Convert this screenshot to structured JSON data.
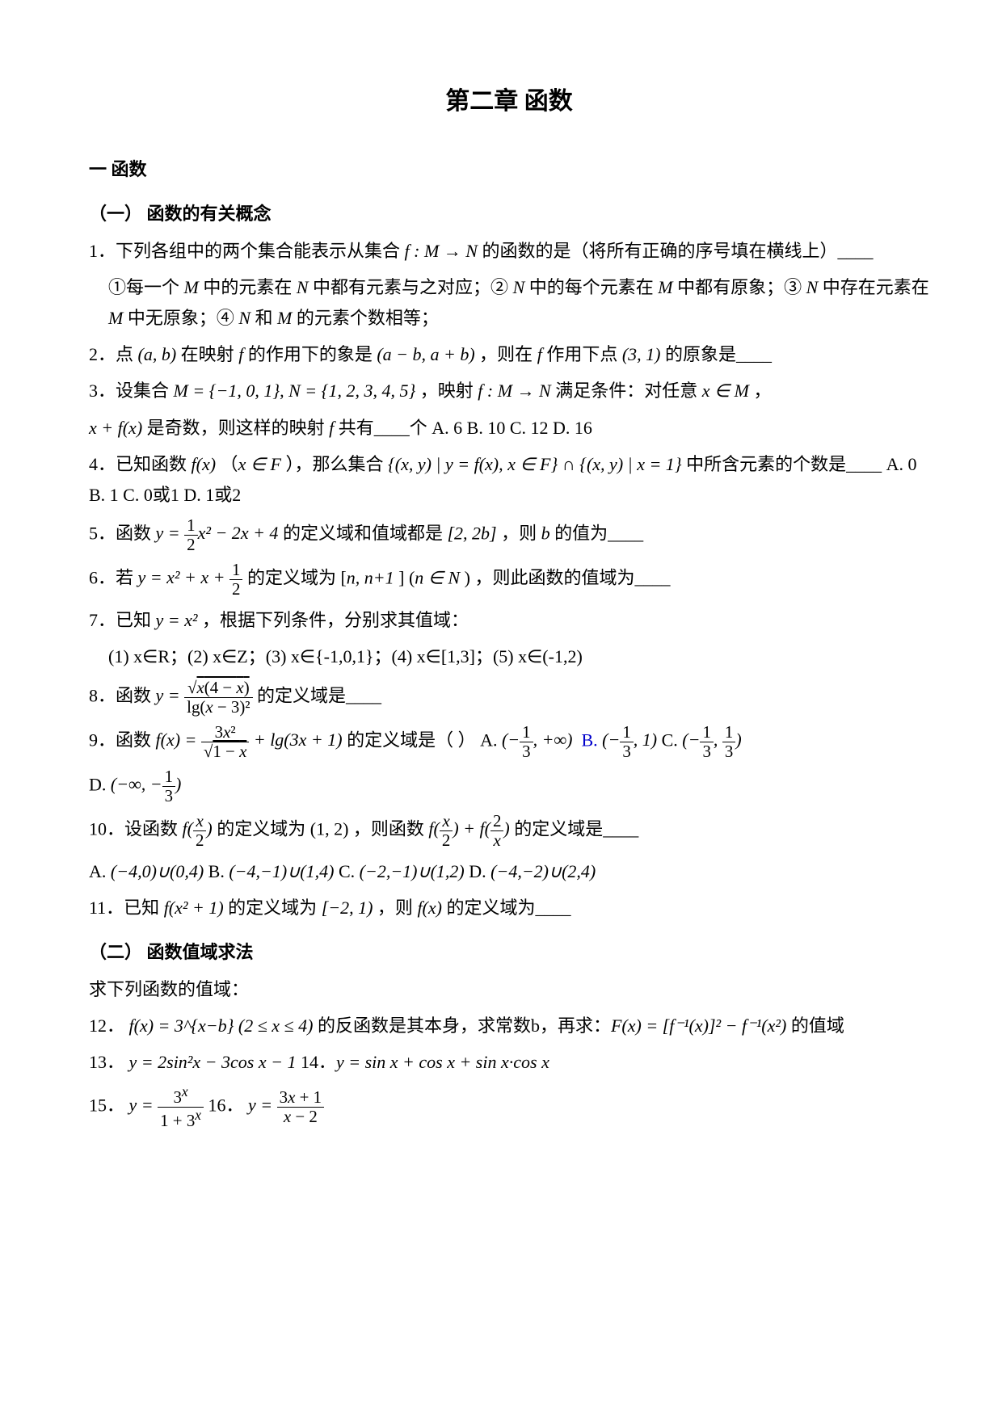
{
  "title": "第二章  函数",
  "s1": {
    "head": "一  函数",
    "sub1": "（一） 函数的有关概念",
    "q1_lead": "1．下列各组中的两个集合能表示从集合 ",
    "q1_mid": " 的函数的是（将所有正确的序号填在横线上）____",
    "q1_a": "①每一个 ",
    "q1_a2": " 中的元素在 ",
    "q1_a3": " 中都有元素与之对应；② ",
    "q1_a4": " 中的每个元素在 ",
    "q1_a5": " 中都有原象；③ ",
    "q1_a6": " 中存在元素在 ",
    "q1_a7": " 中无原象；④ ",
    "q1_a8": " 和 ",
    "q1_a9": " 的元素个数相等；",
    "q2a": "2．点 ",
    "q2b": " 在映射 ",
    "q2c": " 的作用下的象是 ",
    "q2d": " ，则在 ",
    "q2e": " 作用下点 ",
    "q2f": " 的原象是____",
    "q3a": "3．设集合 ",
    "q3b": " ，映射 ",
    "q3c": " 满足条件：对任意 ",
    "q3d": " ，",
    "q3e": " 是奇数，则这样的映射 ",
    "q3f": " 共有____个  A. 6   B. 10   C. 12   D. 16",
    "q4a": "4．已知函数 ",
    "q4b": " （",
    "q4c": " ），那么集合 ",
    "q4d": " 中所含元素的个数是____   A. 0   B. 1   C. 0或1   D. 1或2",
    "q5a": "5．函数 ",
    "q5b": " 的定义域和值域都是 ",
    "q5c": " ，则 ",
    "q5d": " 的值为____",
    "q6a": "6．若 ",
    "q6b": " 的定义域为 [",
    "q6c": "] (",
    "q6d": ") ，则此函数的值域为____",
    "q7a": "7．已知 ",
    "q7b": " ，根据下列条件，分别求其值域：",
    "q7c": "(1) x∈R；(2) x∈Z；(3) x∈{-1,0,1}；(4) x∈[1,3]；(5) x∈(-1,2)",
    "q8a": "8．函数 ",
    "q8b": " 的定义域是____",
    "q9a": "9．函数 ",
    "q9b": " 的定义域是（   ）   A. ",
    "q9c": "   C. ",
    "q9d": "   D. ",
    "q10a": "10．设函数 ",
    "q10b": " 的定义域为 (1, 2) ，则函数 ",
    "q10c": " 的定义域是____",
    "q10d": "  A. ",
    "q10e": "   B. ",
    "q10f": "   C. ",
    "q10g": "   D. ",
    "q11a": "11．已知 ",
    "q11b": " 的定义域为 ",
    "q11c": " ，则 ",
    "q11d": " 的定义域为____",
    "sub2": "（二） 函数值域求法",
    "info": "求下列函数的值域：",
    "q12a": "12． ",
    "q12b": " 的反函数是其本身，求常数b，再求：",
    "q12c": " 的值域",
    "q13a": "13． ",
    "q13b": "              14．",
    "q15a": "15． ",
    "q15b": "              16．"
  },
  "formulas": {
    "fMN": "f : M → N",
    "M": "M",
    "N": "N",
    "ab": "(a, b)",
    "f": "f",
    "abmap": "(a − b, a + b)",
    "p31": "(3, 1)",
    "set_MN": "M = {−1, 0, 1},  N = {1, 2, 3, 4, 5}",
    "xinM": "x ∈ M",
    "xpfx": "x + f(x)",
    "fx": "f(x)",
    "xinF": "x ∈ F",
    "setinter": "{(x, y) | y = f(x), x ∈ F} ∩ {(x, y) | x = 1}",
    "interval2b": "[2, 2b]",
    "b": "b",
    "nn1": "n, n+1",
    "ninN": "n ∈ N",
    "yx2": "y = x²",
    "domA": "(-\\frac{1}{3}, +∞)",
    "domBl": "B.",
    "domB": "(-\\frac{1}{3}, 1)",
    "domC": "(-\\frac{1}{3}, \\frac{1}{3})",
    "domD": "(-∞, -\\frac{1}{3})",
    "ff": "f(x/2)+f(2/x)",
    "optA": "(−4,0)∪(0,4)",
    "optB": "(−4,−1)∪(1,4)",
    "optC": "(−2,−1)∪(1,2)",
    "optD": "(−4,−2)∪(2,4)",
    "fx2p1": "f(x² + 1)",
    "m21": "[−2, 1)",
    "f12": "f(x) = 3^{x−b} (2 ≤ x ≤ 4)",
    "F12": "F(x) = [f⁻¹(x)]² − f⁻¹(x²)",
    "y13": "y = 2sin²x − 3cos x − 1",
    "y14": "y = sin x + cos x + sin x·cos x"
  }
}
